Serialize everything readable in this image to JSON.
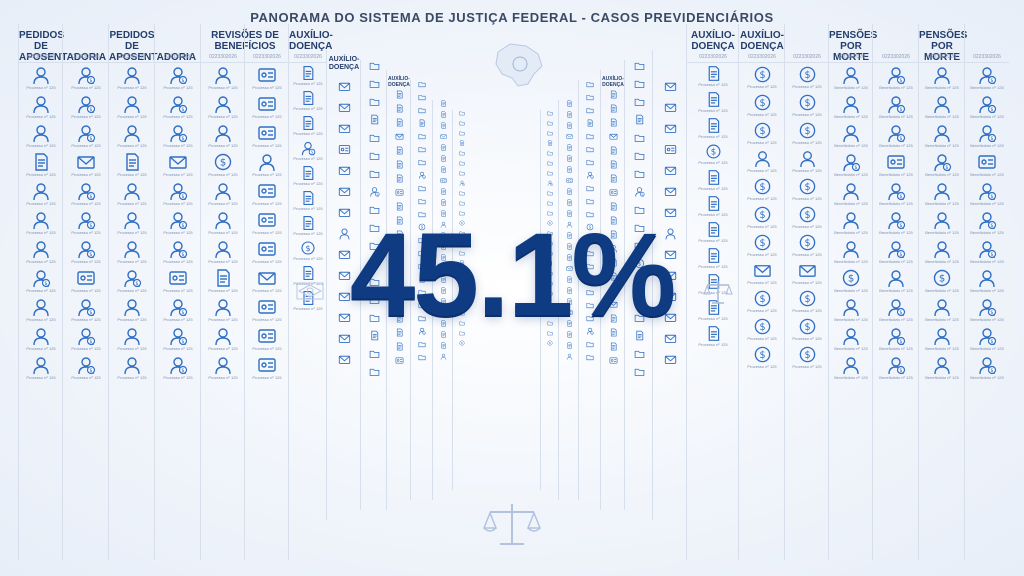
{
  "title": "PANORAMA DO SISTEMA DE JUSTIÇA FEDERAL - CASOS PREVIDENCIÁRIOS",
  "headline_value": "45.1%",
  "colors": {
    "accent": "#0f3b82",
    "icon": "#2f6fc4",
    "line": "#d6dfeb"
  },
  "columns": [
    {
      "header": "PEDIDOS DE APOSENTADORIA",
      "code": "0223302026",
      "icon": "person-icon",
      "caption": "Processo nº 125"
    },
    {
      "header": "PEDIDOS DE APOSENTADORIA",
      "code": "0223302026",
      "icon": "person-dollar-icon",
      "caption": "Processo nº 125"
    },
    {
      "header": "REVISÕES DE BENEFÍCIOS",
      "code": "0223302026",
      "icon": "person-icon",
      "caption": "Processo nº 125"
    },
    {
      "header": "",
      "code": "0223302026",
      "icon": "id-card-icon",
      "caption": "Processo nº 125"
    },
    {
      "header": "AUXÍLIO-DOENÇA",
      "code": "0223302026",
      "icon": "document-icon",
      "caption": "Processo nº 125"
    },
    {
      "header": "AUXÍLIO-DOENÇA",
      "code": "",
      "icon": "envelope-icon",
      "caption": ""
    },
    {
      "header": "AUXÍLIO-DOENÇA",
      "code": "",
      "icon": "folder-icon",
      "caption": ""
    },
    {
      "header": "AUXÍLIO-DOENÇA",
      "code": "",
      "icon": "document-icon",
      "caption": ""
    },
    {
      "header": "AUXÍLIO-DOENÇA",
      "code": "0223302026",
      "icon": "document-icon",
      "caption": "Processo nº 125"
    },
    {
      "header": "AUXÍLIO-DOENÇA",
      "code": "0223302026",
      "icon": "dollar-circle-icon",
      "caption": "Processo nº 125"
    },
    {
      "header": "PENSÕES POR MORTE",
      "code": "0223302026",
      "icon": "person-icon",
      "caption": "Beneficiário nº 125"
    },
    {
      "header": "PENSÕES POR MORTE",
      "code": "0223302026",
      "icon": "person-dollar-icon",
      "caption": "Beneficiário nº 125"
    }
  ]
}
